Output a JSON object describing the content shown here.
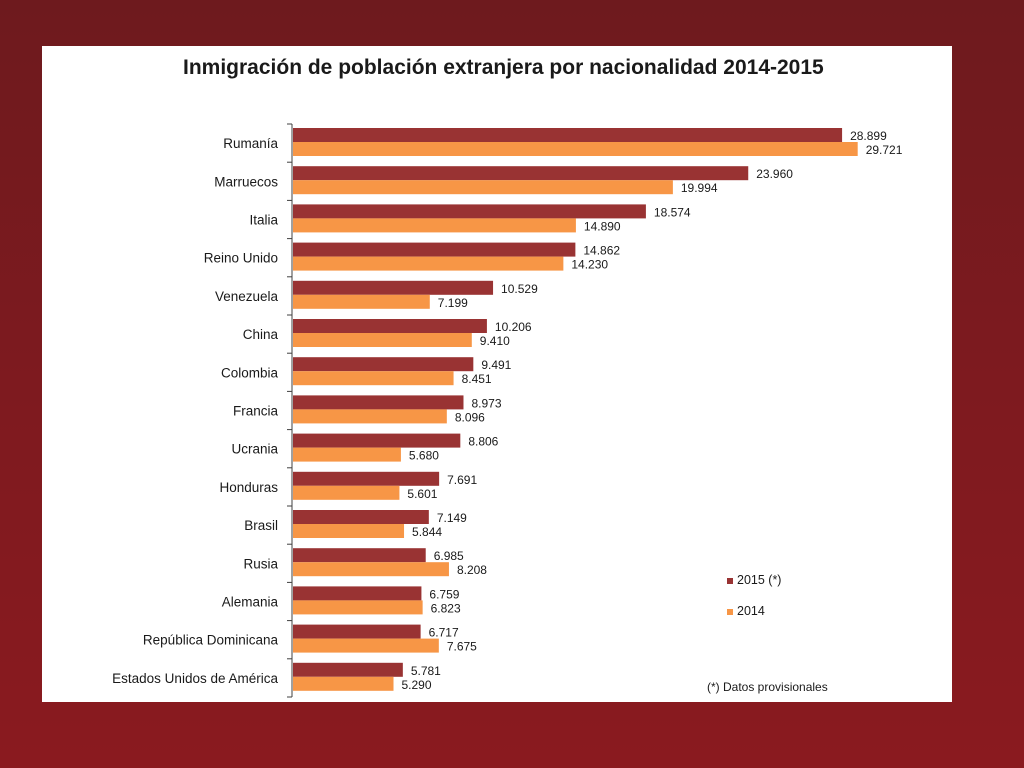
{
  "chart_data": {
    "type": "bar",
    "orientation": "horizontal",
    "title": "Inmigración de población extranjera por nacionalidad 2014-2015",
    "categories": [
      "Rumanía",
      "Marruecos",
      "Italia",
      "Reino Unido",
      "Venezuela",
      "China",
      "Colombia",
      "Francia",
      "Ucrania",
      "Honduras",
      "Brasil",
      "Rusia",
      "Alemania",
      "República Dominicana",
      "Estados Unidos de América"
    ],
    "series": [
      {
        "name": "2015 (*)",
        "color": "#993333",
        "values": [
          28899,
          23960,
          18574,
          14862,
          10529,
          10206,
          9491,
          8973,
          8806,
          7691,
          7149,
          6985,
          6759,
          6717,
          5781
        ],
        "labels": [
          "28.899",
          "23.960",
          "18.574",
          "14.862",
          "10.529",
          "10.206",
          "9.491",
          "8.973",
          "8.806",
          "7.691",
          "7.149",
          "6.985",
          "6.759",
          "6.717",
          "5.781"
        ]
      },
      {
        "name": "2014",
        "color": "#f79646",
        "values": [
          29721,
          19994,
          14890,
          14230,
          7199,
          9410,
          8451,
          8096,
          5680,
          5601,
          5844,
          8208,
          6823,
          7675,
          5290
        ],
        "labels": [
          "29.721",
          "19.994",
          "14.890",
          "14.230",
          "7.199",
          "9.410",
          "8.451",
          "8.096",
          "5.680",
          "5.601",
          "5.844",
          "8.208",
          "6.823",
          "7.675",
          "5.290"
        ]
      }
    ],
    "xlim": [
      0,
      30000
    ],
    "grid": false,
    "legend": "bottom-right",
    "note": "(*) Datos provisionales"
  }
}
